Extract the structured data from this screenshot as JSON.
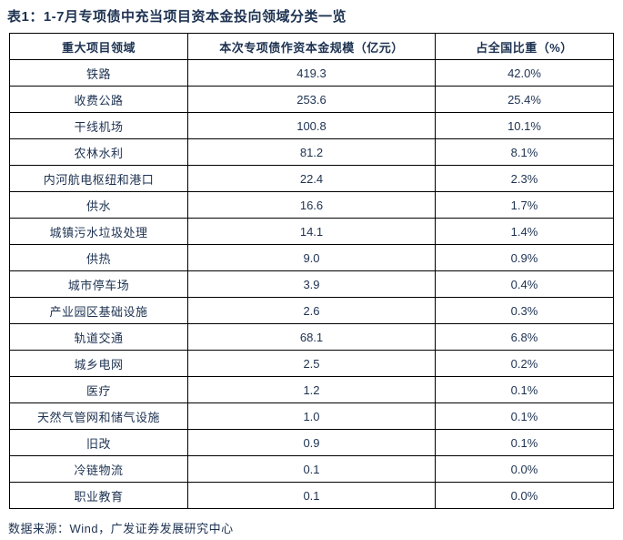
{
  "page": {
    "title": "表1：1-7月专项债中充当项目资本金投向领域分类一览",
    "source_note": "数据来源：Wind，广发证券发展研究中心"
  },
  "colors": {
    "text_navy": "#1d3251",
    "border_black": "#000000",
    "background": "#ffffff"
  },
  "table": {
    "headers": [
      "重大项目领域",
      "本次专项债作资本金规模（亿元）",
      "占全国比重（%）"
    ],
    "rows": [
      {
        "field": "铁路",
        "scale": "419.3",
        "share": "42.0%"
      },
      {
        "field": "收费公路",
        "scale": "253.6",
        "share": "25.4%"
      },
      {
        "field": "干线机场",
        "scale": "100.8",
        "share": "10.1%"
      },
      {
        "field": "农林水利",
        "scale": "81.2",
        "share": "8.1%"
      },
      {
        "field": "内河航电枢纽和港口",
        "scale": "22.4",
        "share": "2.3%"
      },
      {
        "field": "供水",
        "scale": "16.6",
        "share": "1.7%"
      },
      {
        "field": "城镇污水垃圾处理",
        "scale": "14.1",
        "share": "1.4%"
      },
      {
        "field": "供热",
        "scale": "9.0",
        "share": "0.9%"
      },
      {
        "field": "城市停车场",
        "scale": "3.9",
        "share": "0.4%"
      },
      {
        "field": "产业园区基础设施",
        "scale": "2.6",
        "share": "0.3%"
      },
      {
        "field": "轨道交通",
        "scale": "68.1",
        "share": "6.8%"
      },
      {
        "field": "城乡电网",
        "scale": "2.5",
        "share": "0.2%"
      },
      {
        "field": "医疗",
        "scale": "1.2",
        "share": "0.1%"
      },
      {
        "field": "天然气管网和储气设施",
        "scale": "1.0",
        "share": "0.1%"
      },
      {
        "field": "旧改",
        "scale": "0.9",
        "share": "0.1%"
      },
      {
        "field": "冷链物流",
        "scale": "0.1",
        "share": "0.0%"
      },
      {
        "field": "职业教育",
        "scale": "0.1",
        "share": "0.0%"
      }
    ]
  }
}
